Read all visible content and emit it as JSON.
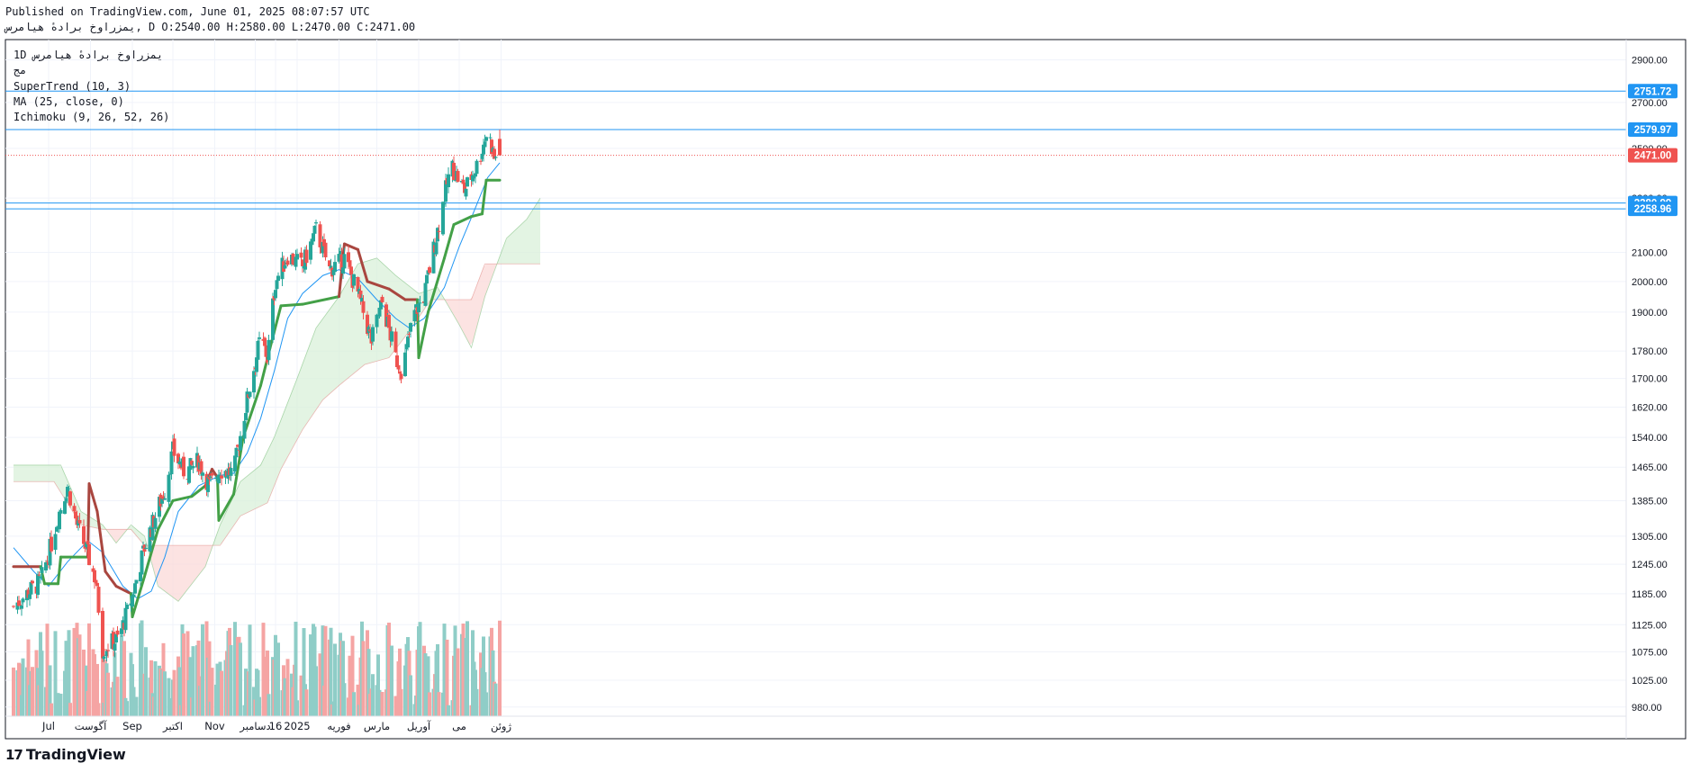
{
  "header": {
    "published": "Published on TradingView.com, June 01, 2025 08:07:57 UTC",
    "ohlc": "یمزراوخ برادهٔ هیامرس, D O:2540.00 H:2580.00 L:2470.00 C:2471.00"
  },
  "legend": {
    "symbol": "1D   یمزراوخ برادهٔ هیامرس",
    "exchange": "مج",
    "supertrend": "SuperTrend (10, 3)",
    "ma": "MA (25, close, 0)",
    "ichimoku": "Ichimoku (9, 26, 52, 26)"
  },
  "brand": {
    "logo_mark": "17",
    "logo_text": "TradingView"
  },
  "colors": {
    "up": "#26a69a",
    "down": "#ef5350",
    "vol_up": "#8fcdc7",
    "vol_down": "#f5a4a3",
    "ma": "#2196f3",
    "st_up": "#43a047",
    "st_down": "#a9463f",
    "kumo_green": "#d9f0d9",
    "kumo_red": "#fbdad8",
    "hline": "#2196f3",
    "last": "#ef5350"
  },
  "chart_data": {
    "type": "candlestick",
    "title": "",
    "xlabel": "",
    "ylabel": "",
    "y_scale": "log",
    "ylim": [
      965,
      3000
    ],
    "y_ticks": [
      980,
      1025,
      1075,
      1125,
      1185,
      1245,
      1305,
      1385,
      1465,
      1540,
      1620,
      1700,
      1780,
      1900,
      2000,
      2100,
      2300,
      2500,
      2700,
      2900
    ],
    "y_tick_labels": [
      "980.00",
      "1025.00",
      "1075.00",
      "1125.00",
      "1185.00",
      "1245.00",
      "1305.00",
      "1385.00",
      "1465.00",
      "1540.00",
      "1620.00",
      "1700.00",
      "1780.00",
      "1900.00",
      "2000.00",
      "2100.00",
      "2300.00",
      "2500.00",
      "2700.00",
      "2900.00"
    ],
    "x_labels": [
      {
        "label": "Jul",
        "date": "2024-07-01"
      },
      {
        "label": "آگوست",
        "date": "2024-08-01"
      },
      {
        "label": "Sep",
        "date": "2024-09-01"
      },
      {
        "label": "اکتبر",
        "date": "2024-10-01"
      },
      {
        "label": "Nov",
        "date": "2024-11-01"
      },
      {
        "label": "دسامبر",
        "date": "2024-12-01"
      },
      {
        "label": "16",
        "date": "2024-12-16"
      },
      {
        "label": "2025",
        "date": "2025-01-01"
      },
      {
        "label": "فوریه",
        "date": "2025-02-01"
      },
      {
        "label": "مارس",
        "date": "2025-03-01"
      },
      {
        "label": "آوریل",
        "date": "2025-04-01"
      },
      {
        "label": "می",
        "date": "2025-05-01"
      },
      {
        "label": "ژوئن",
        "date": "2025-06-01"
      }
    ],
    "horizontal_lines": [
      {
        "value": 2751.72,
        "label": "2751.72"
      },
      {
        "value": 2579.97,
        "label": "2579.97"
      },
      {
        "value": 2280.99,
        "label": "2280.99"
      },
      {
        "value": 2258.96,
        "label": "2258.96"
      }
    ],
    "last_price": {
      "value": 2471.0,
      "label": "2471.00"
    },
    "last_ohlc": {
      "open": 2540.0,
      "high": 2580.0,
      "low": 2470.0,
      "close": 2471.0
    },
    "anchors": [
      {
        "date": "2024-06-05",
        "close": 1160
      },
      {
        "date": "2024-06-25",
        "close": 1210
      },
      {
        "date": "2024-07-01",
        "close": 1265
      },
      {
        "date": "2024-07-08",
        "close": 1350
      },
      {
        "date": "2024-07-15",
        "close": 1420
      },
      {
        "date": "2024-07-22",
        "close": 1330
      },
      {
        "date": "2024-07-29",
        "close": 1275
      },
      {
        "date": "2024-08-05",
        "close": 1210
      },
      {
        "date": "2024-08-10",
        "close": 1080
      },
      {
        "date": "2024-08-22",
        "close": 1100
      },
      {
        "date": "2024-09-01",
        "close": 1180
      },
      {
        "date": "2024-09-10",
        "close": 1280
      },
      {
        "date": "2024-09-25",
        "close": 1410
      },
      {
        "date": "2024-10-01",
        "close": 1505
      },
      {
        "date": "2024-10-10",
        "close": 1450
      },
      {
        "date": "2024-10-20",
        "close": 1480
      },
      {
        "date": "2024-10-28",
        "close": 1420
      },
      {
        "date": "2024-11-05",
        "close": 1460
      },
      {
        "date": "2024-11-15",
        "close": 1450
      },
      {
        "date": "2024-11-25",
        "close": 1640
      },
      {
        "date": "2024-12-05",
        "close": 1820
      },
      {
        "date": "2024-12-10",
        "close": 1760
      },
      {
        "date": "2024-12-16",
        "close": 2000
      },
      {
        "date": "2024-12-25",
        "close": 2090
      },
      {
        "date": "2025-01-05",
        "close": 2050
      },
      {
        "date": "2025-01-15",
        "close": 2180
      },
      {
        "date": "2025-01-25",
        "close": 2040
      },
      {
        "date": "2025-02-05",
        "close": 2080
      },
      {
        "date": "2025-02-15",
        "close": 1960
      },
      {
        "date": "2025-02-25",
        "close": 1810
      },
      {
        "date": "2025-03-05",
        "close": 1930
      },
      {
        "date": "2025-03-15",
        "close": 1760
      },
      {
        "date": "2025-03-20",
        "close": 1720
      },
      {
        "date": "2025-03-28",
        "close": 1890
      },
      {
        "date": "2025-04-05",
        "close": 1950
      },
      {
        "date": "2025-04-15",
        "close": 2180
      },
      {
        "date": "2025-04-25",
        "close": 2430
      },
      {
        "date": "2025-05-05",
        "close": 2330
      },
      {
        "date": "2025-05-15",
        "close": 2440
      },
      {
        "date": "2025-05-22",
        "close": 2580
      },
      {
        "date": "2025-05-27",
        "close": 2460
      },
      {
        "date": "2025-05-31",
        "close": 2471
      }
    ],
    "supertrend": [
      {
        "date": "2024-06-05",
        "value": 1240,
        "trend": "down"
      },
      {
        "date": "2024-06-25",
        "value": 1240,
        "trend": "down"
      },
      {
        "date": "2024-06-28",
        "value": 1205,
        "trend": "up"
      },
      {
        "date": "2024-07-08",
        "value": 1205,
        "trend": "up"
      },
      {
        "date": "2024-07-10",
        "value": 1260,
        "trend": "up"
      },
      {
        "date": "2024-07-30",
        "value": 1260,
        "trend": "up"
      },
      {
        "date": "2024-07-31",
        "value": 1425,
        "trend": "down"
      },
      {
        "date": "2024-08-06",
        "value": 1360,
        "trend": "down"
      },
      {
        "date": "2024-08-12",
        "value": 1230,
        "trend": "down"
      },
      {
        "date": "2024-08-20",
        "value": 1200,
        "trend": "down"
      },
      {
        "date": "2024-08-31",
        "value": 1185,
        "trend": "down"
      },
      {
        "date": "2024-09-01",
        "value": 1140,
        "trend": "up"
      },
      {
        "date": "2024-09-10",
        "value": 1220,
        "trend": "up"
      },
      {
        "date": "2024-09-20",
        "value": 1320,
        "trend": "up"
      },
      {
        "date": "2024-10-01",
        "value": 1385,
        "trend": "up"
      },
      {
        "date": "2024-10-15",
        "value": 1395,
        "trend": "up"
      },
      {
        "date": "2024-10-25",
        "value": 1420,
        "trend": "up"
      },
      {
        "date": "2024-10-30",
        "value": 1460,
        "trend": "down"
      },
      {
        "date": "2024-11-03",
        "value": 1440,
        "trend": "down"
      },
      {
        "date": "2024-11-04",
        "value": 1340,
        "trend": "up"
      },
      {
        "date": "2024-11-15",
        "value": 1400,
        "trend": "up"
      },
      {
        "date": "2024-11-22",
        "value": 1540,
        "trend": "up"
      },
      {
        "date": "2024-12-05",
        "value": 1680,
        "trend": "up"
      },
      {
        "date": "2024-12-12",
        "value": 1790,
        "trend": "up"
      },
      {
        "date": "2024-12-20",
        "value": 1920,
        "trend": "up"
      },
      {
        "date": "2025-01-05",
        "value": 1925,
        "trend": "up"
      },
      {
        "date": "2025-02-01",
        "value": 1950,
        "trend": "up"
      },
      {
        "date": "2025-02-05",
        "value": 2130,
        "trend": "down"
      },
      {
        "date": "2025-02-15",
        "value": 2110,
        "trend": "down"
      },
      {
        "date": "2025-02-22",
        "value": 2000,
        "trend": "down"
      },
      {
        "date": "2025-03-10",
        "value": 1975,
        "trend": "down"
      },
      {
        "date": "2025-03-22",
        "value": 1940,
        "trend": "down"
      },
      {
        "date": "2025-03-31",
        "value": 1940,
        "trend": "down"
      },
      {
        "date": "2025-04-01",
        "value": 1760,
        "trend": "up"
      },
      {
        "date": "2025-04-08",
        "value": 1900,
        "trend": "up"
      },
      {
        "date": "2025-04-20",
        "value": 2080,
        "trend": "up"
      },
      {
        "date": "2025-04-27",
        "value": 2200,
        "trend": "up"
      },
      {
        "date": "2025-05-10",
        "value": 2230,
        "trend": "up"
      },
      {
        "date": "2025-05-18",
        "value": 2240,
        "trend": "up"
      },
      {
        "date": "2025-05-21",
        "value": 2370,
        "trend": "up"
      },
      {
        "date": "2025-05-31",
        "value": 2370,
        "trend": "up"
      }
    ],
    "moving_average": [
      {
        "date": "2024-06-05",
        "value": 1280
      },
      {
        "date": "2024-06-20",
        "value": 1230
      },
      {
        "date": "2024-07-01",
        "value": 1200
      },
      {
        "date": "2024-07-15",
        "value": 1250
      },
      {
        "date": "2024-07-30",
        "value": 1295
      },
      {
        "date": "2024-08-10",
        "value": 1270
      },
      {
        "date": "2024-08-25",
        "value": 1200
      },
      {
        "date": "2024-09-05",
        "value": 1175
      },
      {
        "date": "2024-09-15",
        "value": 1190
      },
      {
        "date": "2024-09-25",
        "value": 1260
      },
      {
        "date": "2024-10-05",
        "value": 1360
      },
      {
        "date": "2024-10-20",
        "value": 1420
      },
      {
        "date": "2024-11-05",
        "value": 1445
      },
      {
        "date": "2024-11-15",
        "value": 1450
      },
      {
        "date": "2024-11-25",
        "value": 1500
      },
      {
        "date": "2024-12-05",
        "value": 1590
      },
      {
        "date": "2024-12-15",
        "value": 1720
      },
      {
        "date": "2024-12-25",
        "value": 1880
      },
      {
        "date": "2025-01-05",
        "value": 1960
      },
      {
        "date": "2025-01-20",
        "value": 2020
      },
      {
        "date": "2025-02-01",
        "value": 2040
      },
      {
        "date": "2025-02-15",
        "value": 2010
      },
      {
        "date": "2025-03-01",
        "value": 1940
      },
      {
        "date": "2025-03-15",
        "value": 1880
      },
      {
        "date": "2025-03-25",
        "value": 1850
      },
      {
        "date": "2025-04-05",
        "value": 1880
      },
      {
        "date": "2025-04-20",
        "value": 1980
      },
      {
        "date": "2025-05-01",
        "value": 2120
      },
      {
        "date": "2025-05-12",
        "value": 2250
      },
      {
        "date": "2025-05-22",
        "value": 2380
      },
      {
        "date": "2025-05-31",
        "value": 2440
      }
    ],
    "ichimoku_span_a": [
      {
        "date": "2024-06-05",
        "value": 1470
      },
      {
        "date": "2024-07-10",
        "value": 1470
      },
      {
        "date": "2024-07-25",
        "value": 1360
      },
      {
        "date": "2024-08-10",
        "value": 1330
      },
      {
        "date": "2024-08-20",
        "value": 1290
      },
      {
        "date": "2024-08-31",
        "value": 1330
      },
      {
        "date": "2024-09-10",
        "value": 1305
      },
      {
        "date": "2024-09-20",
        "value": 1200
      },
      {
        "date": "2024-10-05",
        "value": 1170
      },
      {
        "date": "2024-10-25",
        "value": 1240
      },
      {
        "date": "2024-11-05",
        "value": 1330
      },
      {
        "date": "2024-11-20",
        "value": 1430
      },
      {
        "date": "2024-12-05",
        "value": 1470
      },
      {
        "date": "2024-12-15",
        "value": 1540
      },
      {
        "date": "2025-01-01",
        "value": 1700
      },
      {
        "date": "2025-01-15",
        "value": 1850
      },
      {
        "date": "2025-02-01",
        "value": 1950
      },
      {
        "date": "2025-02-15",
        "value": 2060
      },
      {
        "date": "2025-03-01",
        "value": 2080
      },
      {
        "date": "2025-03-15",
        "value": 2020
      },
      {
        "date": "2025-04-01",
        "value": 1960
      },
      {
        "date": "2025-04-15",
        "value": 1980
      },
      {
        "date": "2025-05-01",
        "value": 1860
      },
      {
        "date": "2025-05-10",
        "value": 1790
      },
      {
        "date": "2025-05-20",
        "value": 1950
      },
      {
        "date": "2025-06-05",
        "value": 2150
      },
      {
        "date": "2025-06-20",
        "value": 2220
      },
      {
        "date": "2025-06-30",
        "value": 2300
      }
    ],
    "ichimoku_span_b": [
      {
        "date": "2024-06-05",
        "value": 1430
      },
      {
        "date": "2024-07-05",
        "value": 1430
      },
      {
        "date": "2024-07-25",
        "value": 1330
      },
      {
        "date": "2024-08-10",
        "value": 1320
      },
      {
        "date": "2024-08-31",
        "value": 1320
      },
      {
        "date": "2024-09-10",
        "value": 1285
      },
      {
        "date": "2024-11-05",
        "value": 1285
      },
      {
        "date": "2024-11-20",
        "value": 1350
      },
      {
        "date": "2024-12-10",
        "value": 1380
      },
      {
        "date": "2024-12-20",
        "value": 1460
      },
      {
        "date": "2025-01-05",
        "value": 1560
      },
      {
        "date": "2025-01-20",
        "value": 1640
      },
      {
        "date": "2025-02-01",
        "value": 1680
      },
      {
        "date": "2025-02-20",
        "value": 1740
      },
      {
        "date": "2025-03-10",
        "value": 1760
      },
      {
        "date": "2025-03-25",
        "value": 1840
      },
      {
        "date": "2025-04-10",
        "value": 1940
      },
      {
        "date": "2025-04-25",
        "value": 1940
      },
      {
        "date": "2025-05-10",
        "value": 1940
      },
      {
        "date": "2025-05-20",
        "value": 2060
      },
      {
        "date": "2025-06-30",
        "value": 2060
      }
    ],
    "volume_relative": "bars scaled 0-1 at bottom of pane, colored by candle direction"
  }
}
